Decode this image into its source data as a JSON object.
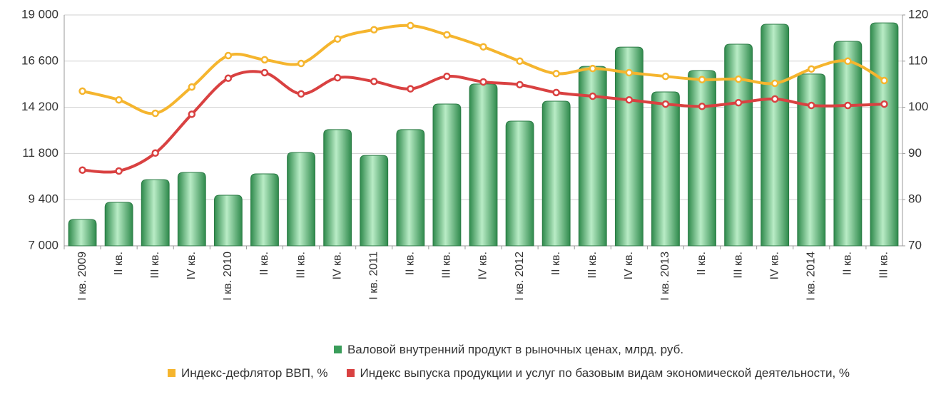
{
  "chart_data": {
    "type": "combo",
    "categories": [
      "I кв. 2009",
      "II кв.",
      "III кв.",
      "IV кв.",
      "I кв. 2010",
      "II кв.",
      "III кв.",
      "IV кв.",
      "I кв. 2011",
      "II кв.",
      "III кв.",
      "IV кв.",
      "I кв. 2012",
      "II кв.",
      "III кв.",
      "IV кв.",
      "I кв. 2013",
      "II кв.",
      "III кв.",
      "IV кв.",
      "I кв. 2014",
      "II кв.",
      "III кв."
    ],
    "series": [
      {
        "name": "Валовой внутренний продукт в рыночных ценах, млрд. руб.",
        "type": "bar",
        "axis": "y",
        "color": "#3a9d5a",
        "values": [
          8370,
          9260,
          10440,
          10815,
          9630,
          10740,
          11850,
          13040,
          11700,
          13040,
          14370,
          15410,
          13480,
          14520,
          16330,
          17330,
          15000,
          16110,
          17480,
          18520,
          15930,
          17630,
          18590
        ]
      },
      {
        "name": "Индекс-дефлятор ВВП, %",
        "type": "line",
        "axis": "y2",
        "color": "#f5b52e",
        "values": [
          103.5,
          101.6,
          98.7,
          104.4,
          111.2,
          110.3,
          109.5,
          114.8,
          116.8,
          117.7,
          115.7,
          113.1,
          110.0,
          107.3,
          108.4,
          107.5,
          106.7,
          106.0,
          106.1,
          105.2,
          108.3,
          110.0,
          105.8
        ]
      },
      {
        "name": "Индекс выпуска продукции и услуг по базовым видам экономической деятельности, %",
        "type": "line",
        "axis": "y2",
        "color": "#d94141",
        "values": [
          86.4,
          86.2,
          90.1,
          98.5,
          106.3,
          107.5,
          102.9,
          106.4,
          105.6,
          104.0,
          106.7,
          105.5,
          104.9,
          103.2,
          102.4,
          101.6,
          100.7,
          100.2,
          101.0,
          101.8,
          100.4,
          100.4,
          100.7
        ]
      }
    ],
    "ylim": [
      7000,
      19000
    ],
    "yticks": [
      {
        "value": 7000,
        "label": "7 000"
      },
      {
        "value": 9400,
        "label": "9 400"
      },
      {
        "value": 11800,
        "label": "11 800"
      },
      {
        "value": 14200,
        "label": "14 200"
      },
      {
        "value": 16600,
        "label": "16 600"
      },
      {
        "value": 19000,
        "label": "19 000"
      }
    ],
    "y2lim": [
      70,
      120
    ],
    "y2ticks": [
      70,
      80,
      90,
      100,
      110,
      120
    ],
    "grid": true
  }
}
